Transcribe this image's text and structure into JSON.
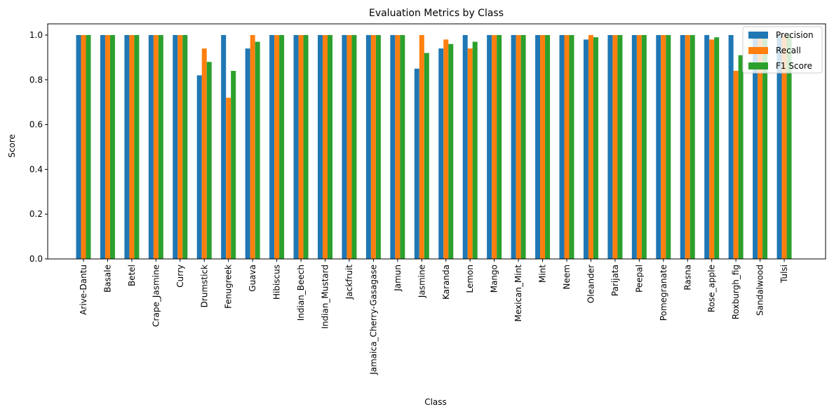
{
  "chart_data": {
    "type": "bar",
    "title": "Evaluation Metrics by Class",
    "xlabel": "Class",
    "ylabel": "Score",
    "ylim": [
      0,
      1.05
    ],
    "yticks": [
      "0.0",
      "0.2",
      "0.4",
      "0.6",
      "0.8",
      "1.0"
    ],
    "ytick_values": [
      0,
      0.2,
      0.4,
      0.6,
      0.8,
      1.0
    ],
    "grid": false,
    "legend_position": "top-right",
    "categories": [
      "Arive-Dantu",
      "Basale",
      "Betel",
      "Crape_Jasmine",
      "Curry",
      "Drumstick",
      "Fenugreek",
      "Guava",
      "Hibiscus",
      "Indian_Beech",
      "Indian_Mustard",
      "Jackfruit",
      "Jamaica_Cherry-Gasagase",
      "Jamun",
      "Jasmine",
      "Karanda",
      "Lemon",
      "Mango",
      "Mexican_Mint",
      "Mint",
      "Neem",
      "Oleander",
      "Parijata",
      "Peepal",
      "Pomegranate",
      "Rasna",
      "Rose_apple",
      "Roxburgh_fig",
      "Sandalwood",
      "Tulsi"
    ],
    "series": [
      {
        "name": "Precision",
        "color": "#1f77b4",
        "values": [
          1.0,
          1.0,
          1.0,
          1.0,
          1.0,
          0.82,
          1.0,
          0.94,
          1.0,
          1.0,
          1.0,
          1.0,
          1.0,
          1.0,
          0.85,
          0.94,
          1.0,
          1.0,
          1.0,
          1.0,
          1.0,
          0.98,
          1.0,
          1.0,
          1.0,
          1.0,
          1.0,
          1.0,
          1.0,
          1.0
        ]
      },
      {
        "name": "Recall",
        "color": "#ff7f0e",
        "values": [
          1.0,
          1.0,
          1.0,
          1.0,
          1.0,
          0.94,
          0.72,
          1.0,
          1.0,
          1.0,
          1.0,
          1.0,
          1.0,
          1.0,
          1.0,
          0.98,
          0.94,
          1.0,
          1.0,
          1.0,
          1.0,
          1.0,
          1.0,
          1.0,
          1.0,
          1.0,
          0.98,
          0.84,
          1.0,
          1.0
        ]
      },
      {
        "name": "F1 Score",
        "color": "#2ca02c",
        "values": [
          1.0,
          1.0,
          1.0,
          1.0,
          1.0,
          0.88,
          0.84,
          0.97,
          1.0,
          1.0,
          1.0,
          1.0,
          1.0,
          1.0,
          0.92,
          0.96,
          0.97,
          1.0,
          1.0,
          1.0,
          1.0,
          0.99,
          1.0,
          1.0,
          1.0,
          1.0,
          0.99,
          0.91,
          1.0,
          1.0
        ]
      }
    ]
  }
}
